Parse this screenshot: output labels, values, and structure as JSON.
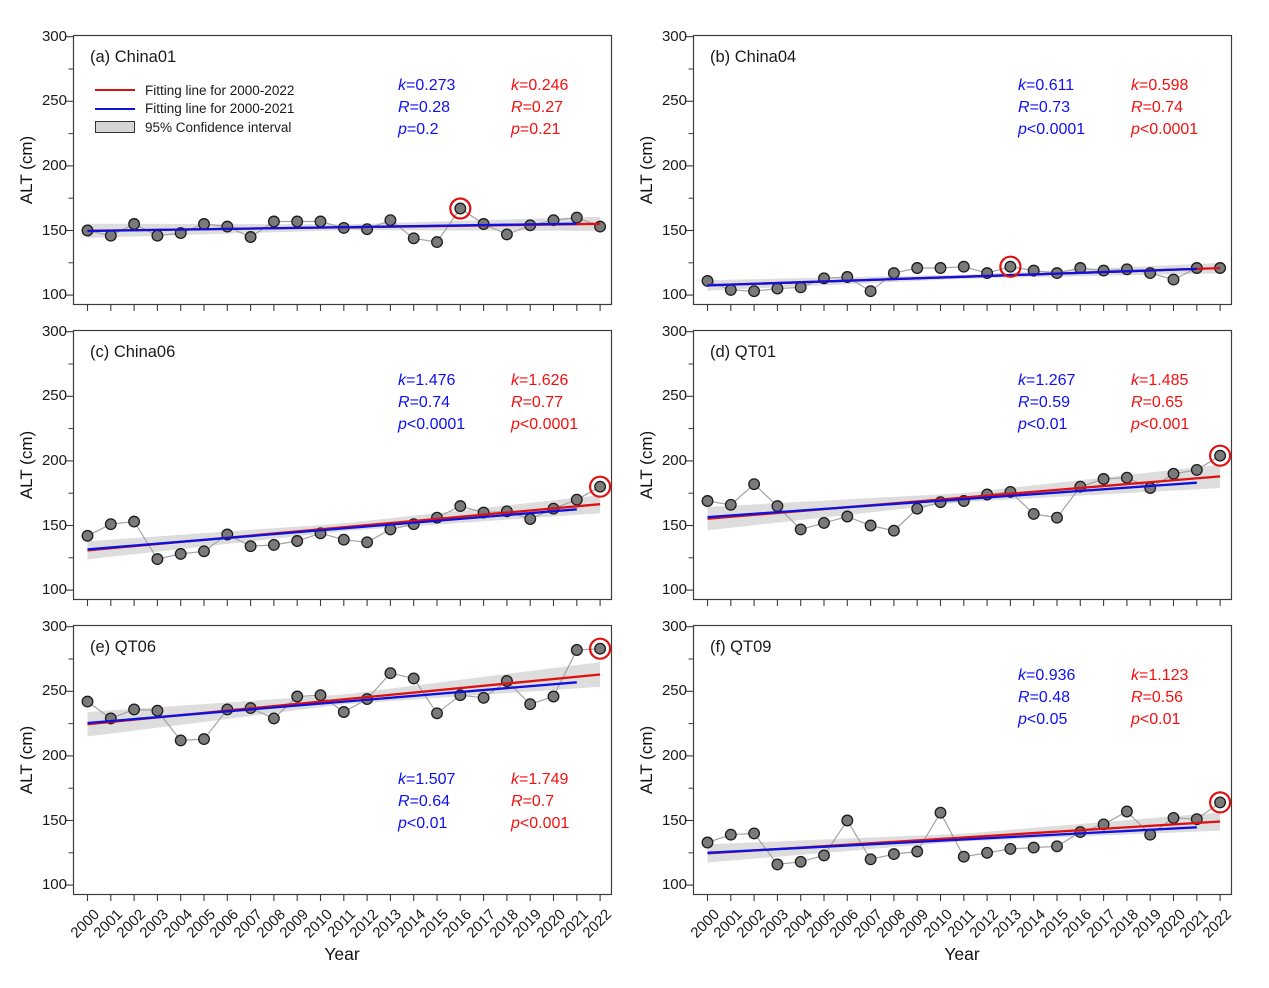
{
  "chart_data": {
    "type": "line",
    "xlabel": "Year",
    "ylabel": "ALT (cm)",
    "x": [
      2000,
      2001,
      2002,
      2003,
      2004,
      2005,
      2006,
      2007,
      2008,
      2009,
      2010,
      2011,
      2012,
      2013,
      2014,
      2015,
      2016,
      2017,
      2018,
      2019,
      2020,
      2021,
      2022
    ],
    "ylim": [
      100,
      300
    ],
    "yticks": [
      100,
      150,
      200,
      250,
      300
    ],
    "yticks_minor": [
      125,
      175,
      225,
      275
    ],
    "grid": false,
    "legend": {
      "position": "upper-left of panel (a)",
      "items": [
        {
          "label": "Fitting line for 2000-2022",
          "type": "line",
          "color": "#dd1111"
        },
        {
          "label": "Fitting line for 2000-2021",
          "type": "line",
          "color": "#1111dd"
        },
        {
          "label": "95% Confidence interval",
          "type": "box",
          "color": "#d5d5d5"
        }
      ]
    },
    "colors": {
      "fit_2000_2022": "#dd1111",
      "fit_2000_2021": "#1111dd",
      "stats_red": "#f50f0f",
      "stats_blue": "#0f0ff5",
      "ci_fill": "#d5d5d5",
      "marker_fill": "#7a7a7a",
      "marker_edge": "#1b1b1b",
      "connector": "#a3a3a3",
      "highlight_ring": "#e01111",
      "axis": "#3c3c3c"
    },
    "panels": [
      {
        "key": "a",
        "title": "(a) China01",
        "site": "China01",
        "values": [
          150,
          146,
          155,
          146,
          148,
          155,
          153,
          145,
          157,
          157,
          157,
          152,
          151,
          158,
          144,
          141,
          167,
          155,
          147,
          154,
          158,
          160,
          153
        ],
        "circled_year": 2016,
        "stats_blue": [
          "k=0.273",
          "R=0.28",
          "p=0.2"
        ],
        "stats_red": [
          "k=0.246",
          "R=0.27",
          "p=0.21"
        ],
        "fit_blue": {
          "x": [
            2000,
            2021
          ],
          "y": [
            149.6,
            155.3
          ]
        },
        "fit_red": {
          "x": [
            2000,
            2022
          ],
          "y": [
            149.8,
            155.2
          ]
        },
        "ci_halfwidth": {
          "end": 5.5,
          "mid": 2.2
        },
        "stats_position": "top-right",
        "has_legend": true
      },
      {
        "key": "b",
        "title": "(b) China04",
        "site": "China04",
        "values": [
          111,
          104,
          103,
          105,
          106,
          113,
          114,
          103,
          117,
          121,
          121,
          122,
          117,
          122,
          119,
          117,
          121,
          119,
          120,
          117,
          112,
          121,
          121
        ],
        "circled_year": 2013,
        "stats_blue": [
          "k=0.611",
          "R=0.73",
          "p<0.0001"
        ],
        "stats_red": [
          "k=0.598",
          "R=0.74",
          "p<0.0001"
        ],
        "fit_blue": {
          "x": [
            2000,
            2021
          ],
          "y": [
            107.5,
            120.3
          ]
        },
        "fit_red": {
          "x": [
            2000,
            2022
          ],
          "y": [
            107.5,
            120.9
          ]
        },
        "ci_halfwidth": {
          "end": 4.0,
          "mid": 1.6
        },
        "stats_position": "top-right",
        "has_legend": false
      },
      {
        "key": "c",
        "title": "(c) China06",
        "site": "China06",
        "values": [
          142,
          151,
          153,
          124,
          128,
          130,
          143,
          134,
          135,
          138,
          144,
          139,
          137,
          147,
          151,
          156,
          165,
          160,
          161,
          155,
          163,
          170,
          180
        ],
        "circled_year": 2022,
        "stats_blue": [
          "k=1.476",
          "R=0.74",
          "p<0.0001"
        ],
        "stats_red": [
          "k=1.626",
          "R=0.77",
          "p<0.0001"
        ],
        "fit_blue": {
          "x": [
            2000,
            2021
          ],
          "y": [
            131.5,
            162.5
          ]
        },
        "fit_red": {
          "x": [
            2000,
            2022
          ],
          "y": [
            130.8,
            166.5
          ]
        },
        "ci_halfwidth": {
          "end": 7.0,
          "mid": 3.0
        },
        "stats_position": "top-right",
        "has_legend": false
      },
      {
        "key": "d",
        "title": "(d) QT01",
        "site": "QT01",
        "values": [
          169,
          166,
          182,
          165,
          147,
          152,
          157,
          150,
          146,
          163,
          168,
          169,
          174,
          176,
          159,
          156,
          180,
          186,
          187,
          179,
          190,
          193,
          204
        ],
        "circled_year": 2022,
        "stats_blue": [
          "k=1.267",
          "R=0.59",
          "p<0.01"
        ],
        "stats_red": [
          "k=1.485",
          "R=0.65",
          "p<0.001"
        ],
        "fit_blue": {
          "x": [
            2000,
            2021
          ],
          "y": [
            156.5,
            183.1
          ]
        },
        "fit_red": {
          "x": [
            2000,
            2022
          ],
          "y": [
            155.3,
            188.0
          ]
        },
        "ci_halfwidth": {
          "end": 9.0,
          "mid": 3.5
        },
        "stats_position": "top-right",
        "has_legend": false
      },
      {
        "key": "e",
        "title": "(e) QT06",
        "site": "QT06",
        "values": [
          242,
          229,
          236,
          235,
          212,
          213,
          236,
          237,
          229,
          246,
          247,
          234,
          244,
          264,
          260,
          233,
          247,
          245,
          258,
          240,
          246,
          282,
          283
        ],
        "circled_year": 2022,
        "stats_blue": [
          "k=1.507",
          "R=0.64",
          "p<0.01"
        ],
        "stats_red": [
          "k=1.749",
          "R=0.7",
          "p<0.001"
        ],
        "fit_blue": {
          "x": [
            2000,
            2021
          ],
          "y": [
            225.5,
            257.0
          ]
        },
        "fit_red": {
          "x": [
            2000,
            2022
          ],
          "y": [
            224.5,
            263.0
          ]
        },
        "ci_halfwidth": {
          "end": 9.5,
          "mid": 3.8
        },
        "stats_position": "bottom-right",
        "has_legend": false
      },
      {
        "key": "f",
        "title": "(f) QT09",
        "site": "QT09",
        "values": [
          133,
          139,
          140,
          116,
          118,
          123,
          150,
          120,
          124,
          126,
          156,
          122,
          125,
          128,
          129,
          130,
          141,
          147,
          157,
          139,
          152,
          151,
          164
        ],
        "circled_year": 2022,
        "stats_blue": [
          "k=0.936",
          "R=0.48",
          "p<0.05"
        ],
        "stats_red": [
          "k=1.123",
          "R=0.56",
          "p<0.01"
        ],
        "fit_blue": {
          "x": [
            2000,
            2021
          ],
          "y": [
            125.0,
            144.7
          ]
        },
        "fit_red": {
          "x": [
            2000,
            2022
          ],
          "y": [
            124.5,
            149.2
          ]
        },
        "ci_halfwidth": {
          "end": 7.0,
          "mid": 3.0
        },
        "stats_position": "top-right",
        "has_legend": false
      }
    ]
  }
}
